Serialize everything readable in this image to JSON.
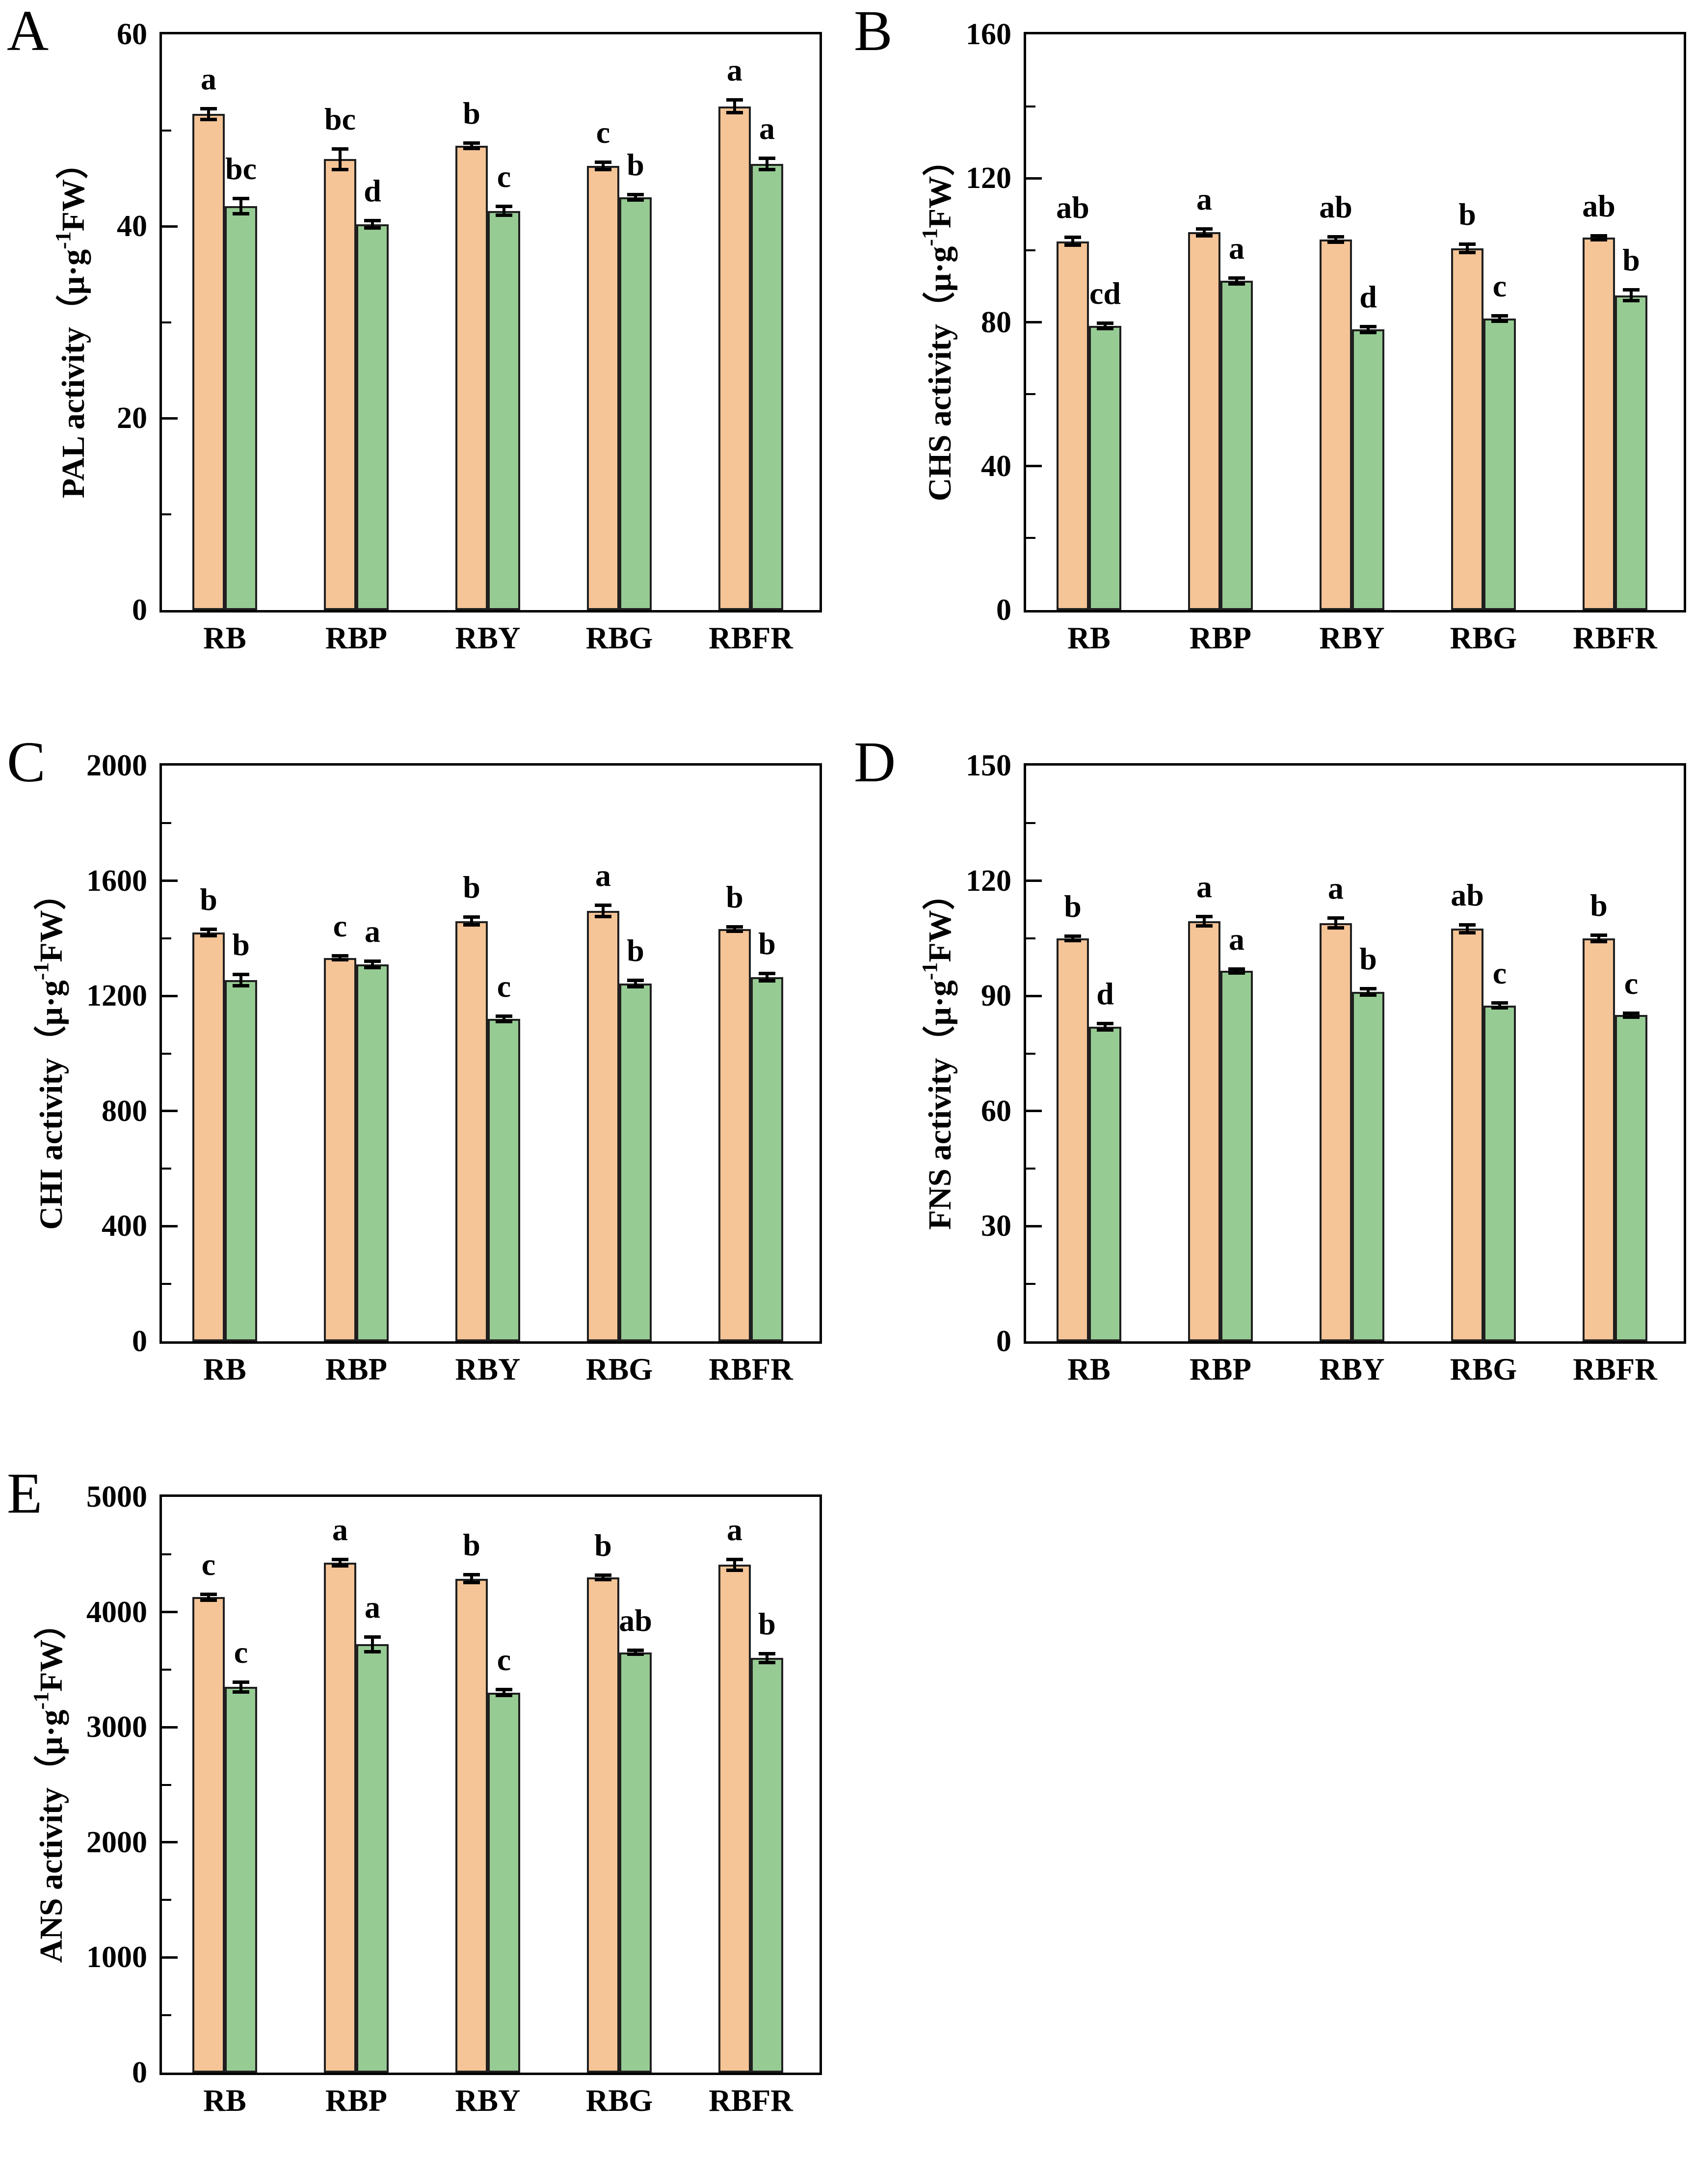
{
  "figure": {
    "background": "#ffffff",
    "bar_color_1": "#F5C497",
    "bar_color_2": "#97CB94",
    "bar_border_color": "#1f1f1f",
    "axis_color": "#000000",
    "categories": [
      "RB",
      "RBP",
      "RBY",
      "RBG",
      "RBFR"
    ]
  },
  "chart_data": [
    {
      "id": "A",
      "label": "A",
      "type": "bar",
      "ylabel": "PAL activity（μ·g-1FW）",
      "ylabel_prefix": "PAL activity（μ·g",
      "ylabel_sup": "-1",
      "ylabel_suffix": "FW）",
      "ylim": [
        0,
        60
      ],
      "yticks": [
        0,
        20,
        40,
        60
      ],
      "minor_step": 10,
      "grid": false,
      "legend": "none",
      "categories": [
        "RB",
        "RBP",
        "RBY",
        "RBG",
        "RBFR"
      ],
      "series": [
        {
          "name": "orange",
          "color": "#F5C497",
          "values": [
            51.7,
            47.0,
            48.4,
            46.3,
            52.5
          ],
          "errors": [
            0.6,
            1.1,
            0.3,
            0.4,
            0.7
          ],
          "letters": [
            "a",
            "bc",
            "b",
            "c",
            "a"
          ]
        },
        {
          "name": "green",
          "color": "#97CB94",
          "values": [
            42.1,
            40.2,
            41.6,
            43.0,
            46.5
          ],
          "errors": [
            0.8,
            0.4,
            0.5,
            0.3,
            0.6
          ],
          "letters": [
            "bc",
            "d",
            "c",
            "b",
            "a"
          ]
        }
      ]
    },
    {
      "id": "B",
      "label": "B",
      "type": "bar",
      "ylabel": "CHS activity（μ·g-1FW）",
      "ylabel_prefix": "CHS activity（μ·g",
      "ylabel_sup": "-1",
      "ylabel_suffix": "FW）",
      "ylim": [
        0,
        160
      ],
      "yticks": [
        0,
        40,
        80,
        120,
        160
      ],
      "minor_step": 20,
      "grid": false,
      "legend": "none",
      "categories": [
        "RB",
        "RBP",
        "RBY",
        "RBG",
        "RBFR"
      ],
      "series": [
        {
          "name": "orange",
          "color": "#F5C497",
          "values": [
            102.5,
            105.0,
            103.0,
            100.5,
            103.5
          ],
          "errors": [
            1.2,
            1.0,
            0.8,
            1.2,
            0.6
          ],
          "letters": [
            "ab",
            "a",
            "ab",
            "b",
            "ab"
          ]
        },
        {
          "name": "green",
          "color": "#97CB94",
          "values": [
            79.0,
            91.5,
            78.0,
            81.0,
            87.5
          ],
          "errors": [
            0.8,
            0.9,
            0.9,
            0.8,
            1.6
          ],
          "letters": [
            "cd",
            "a",
            "d",
            "c",
            "b"
          ]
        }
      ]
    },
    {
      "id": "C",
      "label": "C",
      "type": "bar",
      "ylabel": "CHI activity（μ·g-1FW）",
      "ylabel_prefix": "CHI activity（μ·g",
      "ylabel_sup": "-1",
      "ylabel_suffix": "FW）",
      "ylim": [
        0,
        2000
      ],
      "yticks": [
        0,
        400,
        800,
        1200,
        1600,
        2000
      ],
      "minor_step": 200,
      "grid": false,
      "legend": "none",
      "categories": [
        "RB",
        "RBP",
        "RBY",
        "RBG",
        "RBFR"
      ],
      "series": [
        {
          "name": "orange",
          "color": "#F5C497",
          "values": [
            1420,
            1332,
            1460,
            1495,
            1432
          ],
          "errors": [
            12,
            8,
            14,
            20,
            9
          ],
          "letters": [
            "b",
            "c",
            "b",
            "a",
            "b"
          ]
        },
        {
          "name": "green",
          "color": "#97CB94",
          "values": [
            1255,
            1310,
            1120,
            1243,
            1265
          ],
          "errors": [
            20,
            12,
            10,
            12,
            14
          ],
          "letters": [
            "b",
            "a",
            "c",
            "b",
            "b"
          ]
        }
      ]
    },
    {
      "id": "D",
      "label": "D",
      "type": "bar",
      "ylabel": "FNS activity（μ·g-1FW）",
      "ylabel_prefix": "FNS activity（μ·g",
      "ylabel_sup": "-1",
      "ylabel_suffix": "FW）",
      "ylim": [
        0,
        150
      ],
      "yticks": [
        0,
        30,
        60,
        90,
        120,
        150
      ],
      "minor_step": 15,
      "grid": false,
      "legend": "none",
      "categories": [
        "RB",
        "RBP",
        "RBY",
        "RBG",
        "RBFR"
      ],
      "series": [
        {
          "name": "orange",
          "color": "#F5C497",
          "values": [
            105.0,
            109.5,
            109.0,
            107.5,
            105.0
          ],
          "errors": [
            0.6,
            1.3,
            1.3,
            1.1,
            0.9
          ],
          "letters": [
            "b",
            "a",
            "a",
            "ab",
            "b"
          ]
        },
        {
          "name": "green",
          "color": "#97CB94",
          "values": [
            82.0,
            96.5,
            91.0,
            87.5,
            85.0
          ],
          "errors": [
            0.9,
            0.6,
            0.9,
            0.7,
            0.6
          ],
          "letters": [
            "d",
            "a",
            "b",
            "c",
            "c"
          ]
        }
      ]
    },
    {
      "id": "E",
      "label": "E",
      "type": "bar",
      "ylabel": "ANS activity（μ·g-1FW）",
      "ylabel_prefix": "ANS activity（μ·g",
      "ylabel_sup": "-1",
      "ylabel_suffix": "FW）",
      "ylim": [
        0,
        5000
      ],
      "yticks": [
        0,
        1000,
        2000,
        3000,
        4000,
        5000
      ],
      "minor_step": 500,
      "grid": false,
      "legend": "none",
      "categories": [
        "RB",
        "RBP",
        "RBY",
        "RBG",
        "RBFR"
      ],
      "series": [
        {
          "name": "orange",
          "color": "#F5C497",
          "values": [
            4130,
            4430,
            4290,
            4300,
            4410
          ],
          "errors": [
            28,
            30,
            38,
            22,
            48
          ],
          "letters": [
            "c",
            "a",
            "b",
            "b",
            "a"
          ]
        },
        {
          "name": "green",
          "color": "#97CB94",
          "values": [
            3350,
            3720,
            3300,
            3650,
            3600
          ],
          "errors": [
            45,
            65,
            28,
            18,
            42
          ],
          "letters": [
            "c",
            "a",
            "c",
            "ab",
            "b"
          ]
        }
      ]
    }
  ]
}
